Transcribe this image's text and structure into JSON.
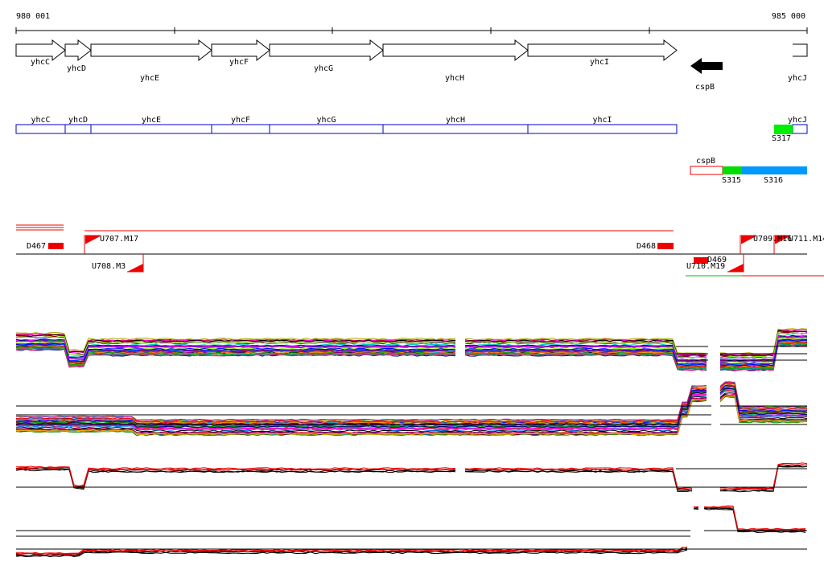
{
  "axis": {
    "start": "980 001",
    "end": "985 000"
  },
  "genes": [
    "yhcC",
    "yhcD",
    "yhcE",
    "yhcF",
    "yhcG",
    "yhcH",
    "yhcI",
    "cspB",
    "yhcJ"
  ],
  "gene_bars": [
    "yhcC",
    "yhcD",
    "yhcE",
    "yhcF",
    "yhcG",
    "yhcH",
    "yhcI",
    "yhcJ"
  ],
  "gene_bar_extra": "S317",
  "transcript": {
    "label": "cspB",
    "segments": [
      "S315",
      "S316"
    ]
  },
  "features": [
    "D467",
    "U707.M17",
    "D468",
    "U709.M16",
    "U711.M14",
    "U708.M3",
    "D469",
    "U710.M19"
  ]
}
